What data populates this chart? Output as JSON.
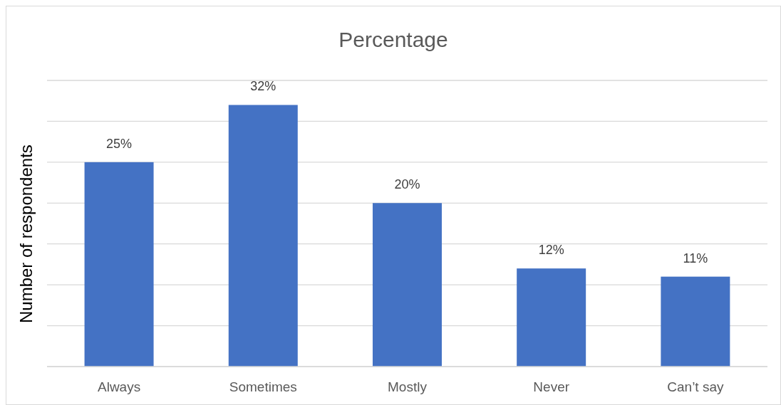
{
  "chart_data": {
    "type": "bar",
    "title": "Percentage",
    "ylabel": "Number of respondents",
    "categories": [
      "Always",
      "Sometimes",
      "Mostly",
      "Never",
      "Can’t say"
    ],
    "values": [
      25,
      32,
      20,
      12,
      11
    ],
    "color": "#4472c4",
    "value_labels": [
      "25%",
      "32%",
      "20%",
      "12%",
      "11%"
    ],
    "ylim": [
      0,
      35
    ],
    "yticks": [
      {
        "value": 0,
        "label": null
      },
      {
        "value": 5,
        "label": null
      },
      {
        "value": 10,
        "label": null
      },
      {
        "value": 15,
        "label": null
      },
      {
        "value": 20,
        "label": null
      },
      {
        "value": 25,
        "label": null
      },
      {
        "value": 30,
        "label": null
      },
      {
        "value": 35,
        "label": null
      }
    ],
    "grid": "y",
    "tick_labels": "x",
    "legend": false
  }
}
